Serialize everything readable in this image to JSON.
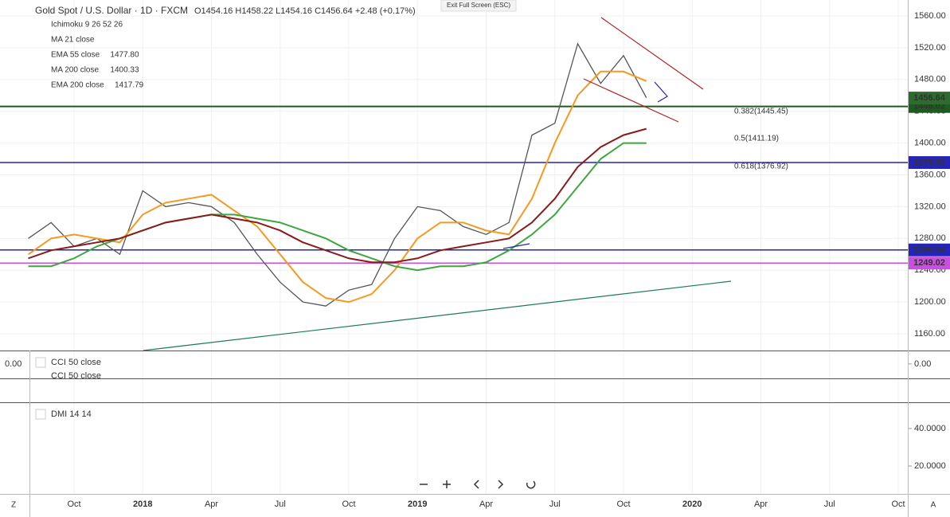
{
  "header": {
    "symbol": "Gold Spot / U.S. Dollar · 1D · FXCM",
    "ohlc": "O1454.16 H1458.22 L1454.16 C1456.64 +2.48 (+0.17%)",
    "exit": "Exit Full Screen (ESC)"
  },
  "legend": [
    {
      "name": "Ichimoku 9 26 52 26",
      "value": null
    },
    {
      "name": "MA 21 close",
      "value": null
    },
    {
      "name": "EMA 55 close",
      "value": "1477.80"
    },
    {
      "name": "MA 200 close",
      "value": "1400.33"
    },
    {
      "name": "EMA 200 close",
      "value": "1417.79"
    }
  ],
  "fib_labels": [
    "0.382(1445.45)",
    "0.5(1411.19)",
    "0.618(1376.92)"
  ],
  "ui": {
    "corner_left": "Z",
    "corner_right": "A"
  },
  "chart_data": [
    {
      "type": "line",
      "x": [
        "2017-08",
        "2017-09",
        "2017-10",
        "2017-11",
        "2017-12",
        "2018-01",
        "2018-02",
        "2018-03",
        "2018-04",
        "2018-05",
        "2018-06",
        "2018-07",
        "2018-08",
        "2018-09",
        "2018-10",
        "2018-11",
        "2018-12",
        "2019-01",
        "2019-02",
        "2019-03",
        "2019-04",
        "2019-05",
        "2019-06",
        "2019-07",
        "2019-08",
        "2019-09",
        "2019-10",
        "2019-11"
      ],
      "series": [
        {
          "name": "Gold Spot / U.S. Dollar",
          "color": "#555555",
          "values": [
            1280,
            1300,
            1270,
            1280,
            1260,
            1340,
            1320,
            1325,
            1320,
            1300,
            1260,
            1225,
            1200,
            1195,
            1215,
            1222,
            1280,
            1320,
            1315,
            1295,
            1285,
            1300,
            1410,
            1425,
            1525,
            1475,
            1510,
            1457
          ]
        },
        {
          "name": "EMA 55 close",
          "color": "#f59a1e",
          "values": [
            1260,
            1280,
            1285,
            1280,
            1275,
            1310,
            1325,
            1330,
            1335,
            1315,
            1295,
            1260,
            1225,
            1205,
            1200,
            1210,
            1240,
            1280,
            1300,
            1300,
            1290,
            1285,
            1330,
            1400,
            1460,
            1490,
            1490,
            1478
          ]
        },
        {
          "name": "MA 200 close",
          "color": "#3fa63f",
          "values": [
            1245,
            1245,
            1255,
            1270,
            1280,
            1290,
            1300,
            1305,
            1310,
            1310,
            1305,
            1300,
            1290,
            1280,
            1265,
            1255,
            1245,
            1240,
            1245,
            1245,
            1250,
            1265,
            1285,
            1310,
            1345,
            1380,
            1400,
            1400
          ]
        },
        {
          "name": "EMA 200 close",
          "color": "#8b1a1a",
          "values": [
            1255,
            1265,
            1270,
            1275,
            1280,
            1290,
            1300,
            1305,
            1310,
            1305,
            1300,
            1290,
            1275,
            1265,
            1255,
            1250,
            1250,
            1255,
            1265,
            1270,
            1275,
            1280,
            1300,
            1330,
            1370,
            1395,
            1410,
            1418
          ]
        }
      ],
      "levels": [
        {
          "value": 1446.02,
          "color": "#1e5b1e"
        },
        {
          "value": 1375.49,
          "color": "#2424b8"
        },
        {
          "value": 1265.54,
          "color": "#2424b8"
        },
        {
          "value": 1249.02,
          "color": "#c94fe0"
        }
      ],
      "last_price": 1456.64,
      "ylim": [
        1139,
        1580
      ],
      "yticks": [
        {
          "value": 1160,
          "label": "1160.00"
        },
        {
          "value": 1200,
          "label": "1200.00"
        },
        {
          "value": 1240,
          "label": "1240.00"
        },
        {
          "value": 1280,
          "label": "1280.00"
        },
        {
          "value": 1320,
          "label": "1320.00"
        },
        {
          "value": 1360,
          "label": "1360.00"
        },
        {
          "value": 1400,
          "label": "1400.00"
        },
        {
          "value": 1440,
          "label": "1440.00"
        },
        {
          "value": 1480,
          "label": "1480.00"
        },
        {
          "value": 1520,
          "label": "1520.00"
        },
        {
          "value": 1560,
          "label": "1560.00"
        }
      ],
      "xticks": [
        {
          "value": "2017-10",
          "label": "Oct"
        },
        {
          "value": "2018-01",
          "label": "2018"
        },
        {
          "value": "2018-04",
          "label": "Apr"
        },
        {
          "value": "2018-07",
          "label": "Jul"
        },
        {
          "value": "2018-10",
          "label": "Oct"
        },
        {
          "value": "2019-01",
          "label": "2019"
        },
        {
          "value": "2019-04",
          "label": "Apr"
        },
        {
          "value": "2019-07",
          "label": "Jul"
        },
        {
          "value": "2019-10",
          "label": "Oct"
        },
        {
          "value": "2020-01",
          "label": "2020"
        },
        {
          "value": "2020-04",
          "label": "Apr"
        },
        {
          "value": "2020-07",
          "label": "Jul"
        },
        {
          "value": "2020-10",
          "label": "Oct"
        }
      ],
      "grid": true
    },
    {
      "type": "indicator",
      "title": "CCI 50 close",
      "subtitle": "CCI 50 close",
      "ylim": [
        -200,
        70
      ],
      "yticks": [
        {
          "value": 0,
          "label": "0.00"
        }
      ]
    },
    {
      "type": "indicator",
      "title": "DMI 14 14",
      "ylim": [
        5.1,
        54
      ],
      "yticks": [
        {
          "value": 20,
          "label": "20.0000"
        },
        {
          "value": 40,
          "label": "40.0000"
        }
      ]
    }
  ]
}
